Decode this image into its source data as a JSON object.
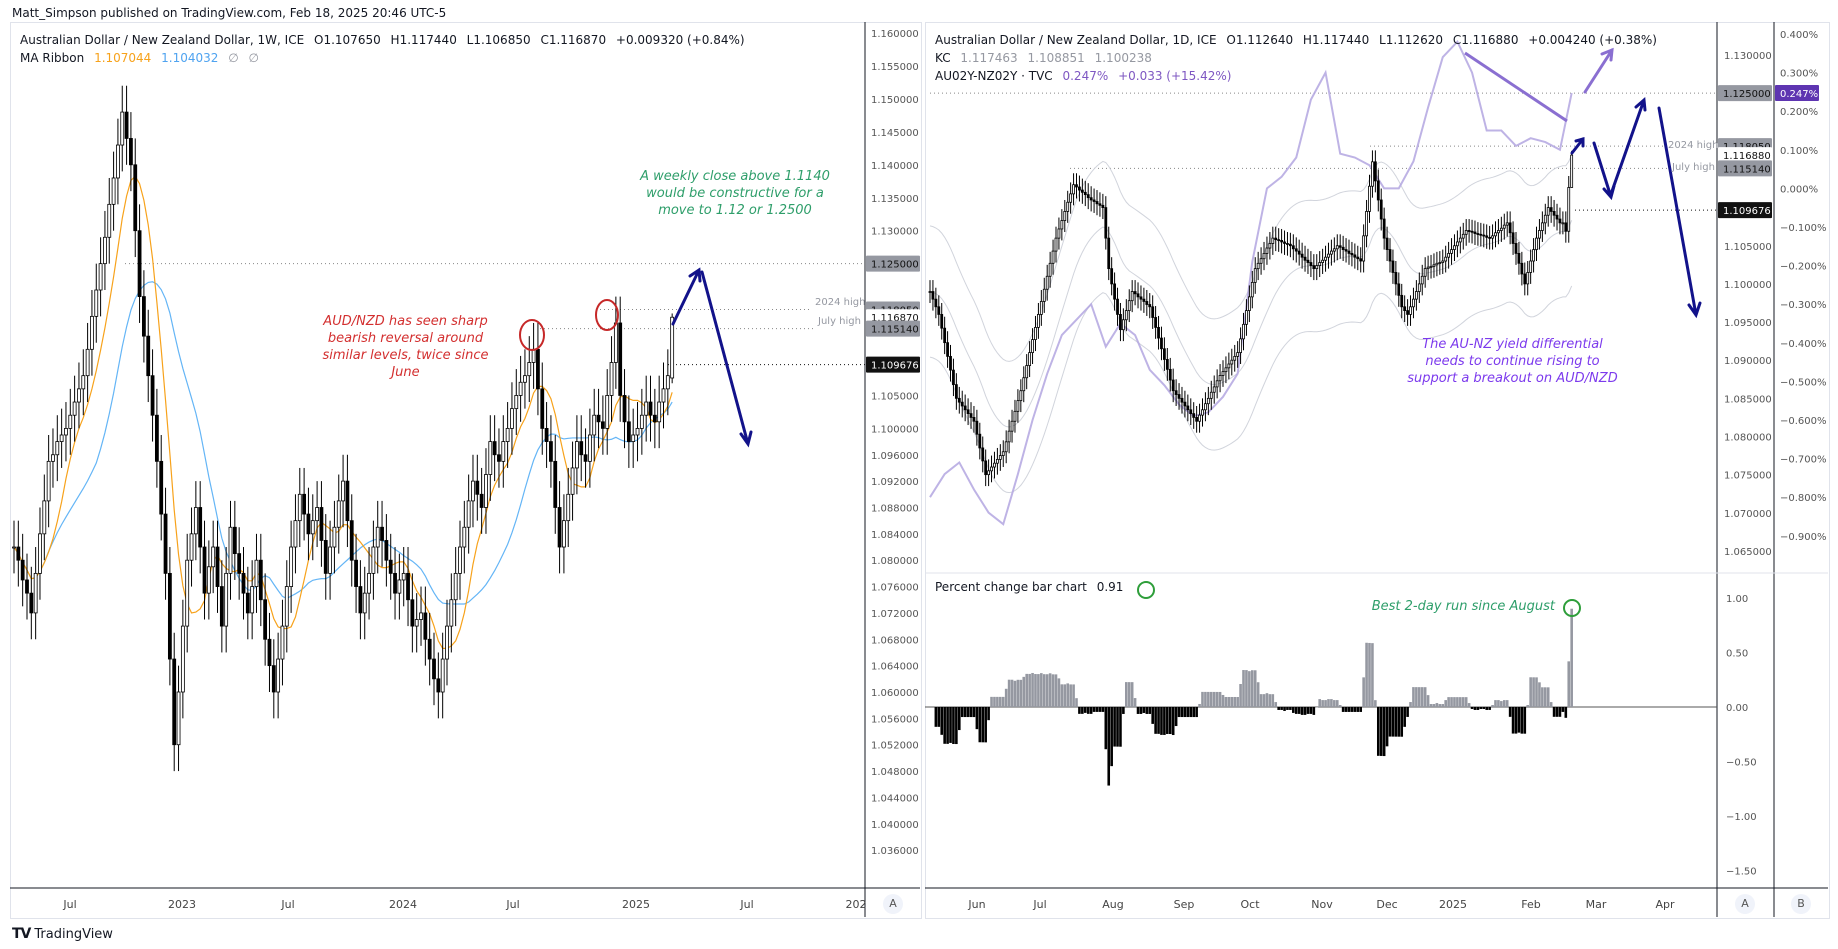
{
  "publisher": "Matt_Simpson published on TradingView.com, Feb 18, 2025 20:46 UTC-5",
  "brand": "TradingView",
  "left": {
    "symbol": "Australian Dollar / New Zealand Dollar, 1W, ICE",
    "ohlc": {
      "o": "O1.107650",
      "h": "H1.117440",
      "l": "L1.106850",
      "c": "C1.116870",
      "chg": "+0.009320 (+0.84%)"
    },
    "ma_ribbon": {
      "label": "MA Ribbon",
      "v1": "1.107044",
      "v2": "1.104032",
      "v3": "∅",
      "v4": "∅"
    },
    "time_labels": [
      "Jul",
      "2023",
      "Jul",
      "2024",
      "Jul",
      "2025",
      "Jul",
      "202"
    ],
    "axis_button": "A",
    "annotations": {
      "green": "A weekly close above 1.1140 would be constructive for a move to 1.12 or 1.2500",
      "red": "AUD/NZD has seen sharp bearish reversal around similar levels, twice since June",
      "line_2024_high": "2024 high",
      "line_july_high": "July high"
    },
    "price_tags": {
      "p1125": "1.125000",
      "p118050": "1.118050",
      "p116870": "1.116870",
      "p115140": "1.115140",
      "p109676": "1.109676"
    }
  },
  "right": {
    "symbol": "Australian Dollar / New Zealand Dollar, 1D, ICE",
    "ohlc": {
      "o": "O1.112640",
      "h": "H1.117440",
      "l": "L1.112620",
      "c": "C1.116880",
      "chg": "+0.004240 (+0.38%)"
    },
    "kc": {
      "label": "KC",
      "upper": "1.117463",
      "mid": "1.108851",
      "lower": "1.100238"
    },
    "yield": {
      "label": "AU02Y-NZ02Y · TVC",
      "value": "0.247%",
      "chg": "+0.033 (+15.42%)"
    },
    "pct_chart": {
      "label": "Percent change bar chart",
      "value": "0.91"
    },
    "time_labels": [
      "Jun",
      "Jul",
      "Aug",
      "Sep",
      "Oct",
      "Nov",
      "Dec",
      "2025",
      "Feb",
      "Mar",
      "Apr"
    ],
    "axis_buttons": [
      "A",
      "B"
    ],
    "annotations": {
      "purple": "The AU-NZ yield differential needs to continue rising to support a breakout on AUD/NZD",
      "green": "Best 2-day run since August",
      "line_2024_high": "2024 high",
      "line_july_high": "July high"
    },
    "price_tags": {
      "p1125": "1.125000",
      "p118050": "1.118050",
      "p116880": "1.116880",
      "p115140": "1.115140",
      "p109676": "1.109676",
      "yield": "0.247%"
    }
  },
  "colors": {
    "ma_fast": "#f7a21b",
    "ma_slow": "#64b5f6",
    "yield": "#b3a6e0",
    "kc": "#d1d4dc",
    "arrow": "#12128a",
    "trend": "#8a6fd1",
    "up_bar": "#9598a1",
    "down_bar": "#000000",
    "red_note": "#d32f2f",
    "green_note": "#2e9e6a",
    "purple_note": "#7c3aed"
  },
  "chart_data": [
    {
      "type": "candlestick",
      "title": "Australian Dollar / New Zealand Dollar, 1W, ICE",
      "timeframe": "1W",
      "last_bar_date": "Feb 18, 2025",
      "y_ticks": [
        1.16,
        1.155,
        1.15,
        1.145,
        1.14,
        1.135,
        1.13,
        1.105,
        1.1,
        1.096,
        1.092,
        1.088,
        1.084,
        1.08,
        1.076,
        1.072,
        1.068,
        1.064,
        1.06,
        1.056,
        1.052,
        1.048,
        1.044,
        1.04,
        1.036
      ],
      "ylim": [
        1.034,
        1.162
      ],
      "xlim": [
        "2022-03",
        "2026-01"
      ],
      "close": [
        1.082,
        1.08,
        1.077,
        1.075,
        1.072,
        1.078,
        1.084,
        1.089,
        1.095,
        1.096,
        1.098,
        1.099,
        1.1,
        1.102,
        1.104,
        1.106,
        1.108,
        1.112,
        1.117,
        1.121,
        1.125,
        1.129,
        1.134,
        1.138,
        1.143,
        1.148,
        1.144,
        1.14,
        1.13,
        1.12,
        1.114,
        1.108,
        1.102,
        1.095,
        1.087,
        1.078,
        1.065,
        1.052,
        1.06,
        1.07,
        1.08,
        1.084,
        1.088,
        1.082,
        1.075,
        1.079,
        1.082,
        1.076,
        1.07,
        1.078,
        1.085,
        1.081,
        1.078,
        1.075,
        1.072,
        1.076,
        1.08,
        1.074,
        1.068,
        1.064,
        1.06,
        1.065,
        1.07,
        1.076,
        1.082,
        1.086,
        1.09,
        1.087,
        1.084,
        1.086,
        1.088,
        1.083,
        1.078,
        1.082,
        1.085,
        1.089,
        1.092,
        1.086,
        1.08,
        1.076,
        1.072,
        1.075,
        1.078,
        1.082,
        1.085,
        1.083,
        1.08,
        1.078,
        1.075,
        1.077,
        1.078,
        1.074,
        1.07,
        1.071,
        1.072,
        1.068,
        1.065,
        1.062,
        1.06,
        1.065,
        1.07,
        1.074,
        1.078,
        1.082,
        1.085,
        1.089,
        1.092,
        1.09,
        1.088,
        1.093,
        1.098,
        1.096,
        1.095,
        1.098,
        1.1,
        1.103,
        1.105,
        1.107,
        1.108,
        1.11,
        1.112,
        1.106,
        1.1,
        1.098,
        1.095,
        1.088,
        1.082,
        1.086,
        1.09,
        1.094,
        1.098,
        1.096,
        1.095,
        1.099,
        1.102,
        1.101,
        1.1,
        1.105,
        1.11,
        1.116,
        1.105,
        1.101,
        1.098,
        1.099,
        1.1,
        1.102,
        1.104,
        1.102,
        1.101,
        1.104,
        1.106,
        1.108,
        1.11687
      ],
      "last_ohlc": {
        "open": 1.10765,
        "high": 1.11744,
        "low": 1.10685,
        "close": 1.11687
      },
      "series": [
        {
          "name": "MA Ribbon",
          "last": [
            1.107044,
            1.104032
          ]
        }
      ],
      "levels": [
        {
          "value": 1.125,
          "label": ""
        },
        {
          "value": 1.11805,
          "label": "2024 high"
        },
        {
          "value": 1.11514,
          "label": "July high"
        },
        {
          "value": 1.109676,
          "label": ""
        }
      ]
    },
    {
      "type": "candlestick",
      "title": "Australian Dollar / New Zealand Dollar, 1D, ICE",
      "timeframe": "1D",
      "last_bar_date": "Feb 18, 2025",
      "y_ticks": [
        1.13,
        1.105,
        1.1,
        1.095,
        1.09,
        1.085,
        1.08,
        1.075,
        1.07,
        1.065
      ],
      "ylim": [
        1.062,
        1.132
      ],
      "y2_ticks": [
        0.4,
        0.3,
        0.2,
        0.1,
        0.0,
        -0.1,
        -0.2,
        -0.3,
        -0.4,
        -0.5,
        -0.6,
        -0.7,
        -0.8,
        -0.9
      ],
      "y2lim": [
        -0.95,
        0.43
      ],
      "y2_unit": "%",
      "xlim": [
        "2024-05",
        "2025-04"
      ],
      "close": [
        1.099,
        1.098,
        1.097,
        1.096,
        1.0942,
        1.0923,
        1.0905,
        1.0887,
        1.0868,
        1.085,
        1.0845,
        1.084,
        1.0835,
        1.083,
        1.0825,
        1.082,
        1.0803,
        1.0785,
        1.0768,
        1.075,
        1.0755,
        1.076,
        1.0765,
        1.077,
        1.0775,
        1.078,
        1.0793,
        1.0807,
        1.082,
        1.0833,
        1.0847,
        1.086,
        1.0877,
        1.0893,
        1.091,
        1.0927,
        1.0943,
        1.096,
        1.0977,
        1.0993,
        1.101,
        1.1027,
        1.1043,
        1.106,
        1.1072,
        1.1083,
        1.1095,
        1.1107,
        1.1118,
        1.113,
        1.1127,
        1.1123,
        1.112,
        1.1117,
        1.1113,
        1.111,
        1.1108,
        1.1105,
        1.1103,
        1.11,
        1.106,
        1.102,
        1.1,
        1.098,
        1.096,
        1.094,
        1.0953,
        1.0965,
        1.0978,
        1.099,
        1.0987,
        1.0983,
        1.098,
        1.0977,
        1.0973,
        1.097,
        1.0956,
        1.0943,
        1.0929,
        1.0915,
        1.0901,
        1.0888,
        1.0874,
        1.086,
        1.0855,
        1.085,
        1.0845,
        1.084,
        1.0835,
        1.083,
        1.0825,
        1.082,
        1.0828,
        1.0835,
        1.0843,
        1.085,
        1.0858,
        1.0865,
        1.0873,
        1.088,
        1.0885,
        1.089,
        1.0895,
        1.09,
        1.0905,
        1.091,
        1.0928,
        1.0947,
        1.0965,
        1.0983,
        1.1002,
        1.102,
        1.1027,
        1.1033,
        1.104,
        1.1047,
        1.1053,
        1.106,
        1.1058,
        1.1057,
        1.1055,
        1.1053,
        1.1052,
        1.105,
        1.1046,
        1.1043,
        1.1039,
        1.1035,
        1.1031,
        1.1028,
        1.1024,
        1.102,
        1.1024,
        1.1028,
        1.1031,
        1.1035,
        1.1039,
        1.1043,
        1.1046,
        1.105,
        1.1048,
        1.1045,
        1.1043,
        1.104,
        1.1038,
        1.1035,
        1.1033,
        1.103,
        1.1063,
        1.1095,
        1.1128,
        1.116,
        1.1135,
        1.111,
        1.1085,
        1.106,
        1.1045,
        1.103,
        1.1015,
        1.1,
        1.0985,
        1.097,
        1.0965,
        1.096,
        1.097,
        1.098,
        1.099,
        1.1,
        1.101,
        1.102,
        1.1022,
        1.1023,
        1.1025,
        1.1027,
        1.1028,
        1.103,
        1.1035,
        1.104,
        1.1045,
        1.105,
        1.1055,
        1.106,
        1.1065,
        1.107,
        1.1069,
        1.1068,
        1.1066,
        1.1065,
        1.1064,
        1.1063,
        1.1061,
        1.106,
        1.1063,
        1.1067,
        1.107,
        1.1073,
        1.1077,
        1.108,
        1.1067,
        1.1053,
        1.104,
        1.1027,
        1.1013,
        1.1,
        1.1015,
        1.103,
        1.1045,
        1.106,
        1.107,
        1.108,
        1.109,
        1.11,
        1.1095,
        1.109,
        1.1085,
        1.108,
        1.108,
        1.1069,
        1.11264,
        1.11688
      ],
      "last_ohlc": {
        "open": 1.11264,
        "high": 1.11744,
        "low": 1.11262,
        "close": 1.11688
      },
      "series": [
        {
          "name": "KC",
          "last": [
            1.117463,
            1.108851,
            1.100238
          ]
        },
        {
          "name": "AU02Y-NZ02Y · TVC",
          "axis": "right-%",
          "every_n_bars": 5,
          "values": [
            -0.8,
            -0.74,
            -0.71,
            -0.78,
            -0.84,
            -0.87,
            -0.74,
            -0.6,
            -0.48,
            -0.38,
            -0.34,
            -0.3,
            -0.41,
            -0.35,
            -0.38,
            -0.47,
            -0.51,
            -0.56,
            -0.59,
            -0.58,
            -0.54,
            -0.48,
            -0.19,
            0.0,
            0.03,
            0.08,
            0.23,
            0.3,
            0.09,
            0.08,
            0.06,
            0.0,
            0.0,
            0.07,
            0.21,
            0.34,
            0.38,
            0.3,
            0.15,
            0.15,
            0.11,
            0.13,
            0.12,
            0.1,
            0.247
          ]
        }
      ],
      "levels": [
        {
          "value": 1.125,
          "label": ""
        },
        {
          "value": 1.11805,
          "label": "2024 high"
        },
        {
          "value": 1.11514,
          "label": "July high"
        },
        {
          "value": 1.109676,
          "label": ""
        }
      ]
    },
    {
      "type": "bar",
      "title": "Percent change bar chart",
      "last_value": 0.91,
      "period_bars": 2,
      "y_ticks": [
        1.0,
        0.5,
        0.0,
        -0.5,
        -1.0,
        -1.5
      ],
      "ylim": [
        -1.65,
        1.2
      ]
    }
  ]
}
